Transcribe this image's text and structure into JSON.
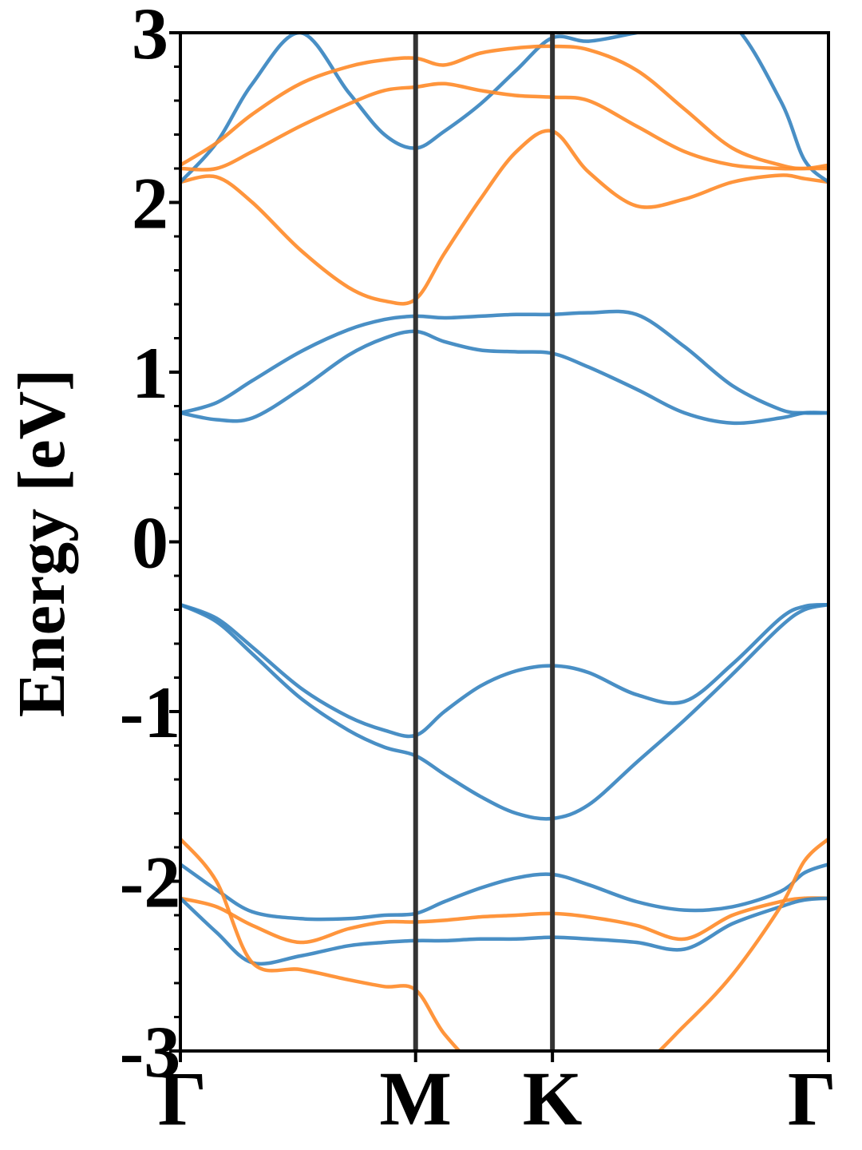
{
  "chart_data": {
    "type": "line",
    "title": "",
    "xlabel": "",
    "ylabel": "Energy [eV]",
    "ylim": [
      -3,
      3
    ],
    "xlim": [
      0,
      2.7
    ],
    "y_ticks": [
      "3",
      "2",
      "1",
      "0",
      "-1",
      "-2",
      "-3"
    ],
    "y_tick_values": [
      3,
      2,
      1,
      0,
      -1,
      -2,
      -3
    ],
    "x_ticks": [
      {
        "label": "Γ",
        "x": 0
      },
      {
        "label": "M",
        "x": 0.98
      },
      {
        "label": "K",
        "x": 1.55
      },
      {
        "label": "Γ",
        "x": 2.7
      }
    ],
    "symmetry_lines_x": [
      0.98,
      1.55
    ],
    "grid": false,
    "legend": "none",
    "colors": {
      "spin_a": "#3a86c0",
      "spin_b": "#ff8c2b",
      "symmetry_line": "#333333"
    },
    "x": [
      0,
      0.15,
      0.3,
      0.5,
      0.7,
      0.85,
      0.98,
      1.1,
      1.25,
      1.4,
      1.55,
      1.7,
      1.9,
      2.1,
      2.3,
      2.5,
      2.6,
      2.7
    ],
    "series": [
      {
        "color": "spin_a",
        "values": [
          -0.37,
          -0.45,
          -0.62,
          -0.86,
          -1.03,
          -1.11,
          -1.14,
          -1.0,
          -0.85,
          -0.76,
          -0.73,
          -0.77,
          -0.9,
          -0.94,
          -0.72,
          -0.45,
          -0.38,
          -0.37
        ]
      },
      {
        "color": "spin_a",
        "values": [
          -0.37,
          -0.47,
          -0.66,
          -0.92,
          -1.11,
          -1.21,
          -1.26,
          -1.37,
          -1.5,
          -1.6,
          -1.63,
          -1.55,
          -1.3,
          -1.05,
          -0.78,
          -0.5,
          -0.4,
          -0.37
        ]
      },
      {
        "color": "spin_a",
        "values": [
          0.76,
          0.72,
          0.73,
          0.9,
          1.1,
          1.2,
          1.24,
          1.18,
          1.13,
          1.12,
          1.11,
          1.03,
          0.9,
          0.76,
          0.7,
          0.73,
          0.76,
          0.76
        ]
      },
      {
        "color": "spin_a",
        "values": [
          0.76,
          0.82,
          0.95,
          1.12,
          1.25,
          1.31,
          1.33,
          1.32,
          1.33,
          1.34,
          1.34,
          1.35,
          1.34,
          1.15,
          0.92,
          0.78,
          0.76,
          0.76
        ]
      },
      {
        "color": "spin_b",
        "values": [
          2.12,
          2.15,
          2.0,
          1.72,
          1.5,
          1.42,
          1.43,
          1.7,
          2.02,
          2.3,
          2.42,
          2.18,
          1.98,
          2.02,
          2.12,
          2.16,
          2.14,
          2.12
        ]
      },
      {
        "color": "spin_a",
        "values": [
          2.12,
          2.35,
          2.7,
          3.0,
          2.65,
          2.4,
          2.32,
          2.42,
          2.58,
          2.78,
          2.97,
          2.95,
          3.0,
          3.05,
          3.05,
          2.6,
          2.25,
          2.12
        ]
      },
      {
        "color": "spin_b",
        "values": [
          2.2,
          2.2,
          2.3,
          2.45,
          2.58,
          2.66,
          2.68,
          2.7,
          2.66,
          2.63,
          2.62,
          2.6,
          2.45,
          2.3,
          2.22,
          2.2,
          2.2,
          2.2
        ]
      },
      {
        "color": "spin_b",
        "values": [
          2.22,
          2.35,
          2.52,
          2.7,
          2.8,
          2.84,
          2.85,
          2.81,
          2.88,
          2.91,
          2.92,
          2.9,
          2.78,
          2.55,
          2.32,
          2.22,
          2.2,
          2.22
        ]
      },
      {
        "color": "spin_a",
        "values": [
          -1.9,
          -2.05,
          -2.18,
          -2.22,
          -2.22,
          -2.2,
          -2.19,
          -2.12,
          -2.04,
          -1.98,
          -1.96,
          -2.02,
          -2.12,
          -2.17,
          -2.15,
          -2.06,
          -1.95,
          -1.9
        ]
      },
      {
        "color": "spin_b",
        "values": [
          -2.1,
          -2.15,
          -2.26,
          -2.36,
          -2.28,
          -2.24,
          -2.24,
          -2.23,
          -2.21,
          -2.2,
          -2.19,
          -2.21,
          -2.26,
          -2.34,
          -2.2,
          -2.12,
          -2.1,
          -2.1
        ]
      },
      {
        "color": "spin_a",
        "values": [
          -2.1,
          -2.3,
          -2.48,
          -2.44,
          -2.38,
          -2.36,
          -2.35,
          -2.35,
          -2.34,
          -2.34,
          -2.33,
          -2.34,
          -2.36,
          -2.4,
          -2.25,
          -2.15,
          -2.11,
          -2.1
        ]
      },
      {
        "color": "spin_b",
        "values": [
          -1.75,
          -2.0,
          -2.48,
          -2.52,
          -2.58,
          -2.62,
          -2.64,
          -2.9,
          -3.1,
          -3.1,
          -3.1,
          -3.1,
          -3.1,
          -2.85,
          -2.55,
          -2.15,
          -1.88,
          -1.75
        ]
      }
    ]
  }
}
